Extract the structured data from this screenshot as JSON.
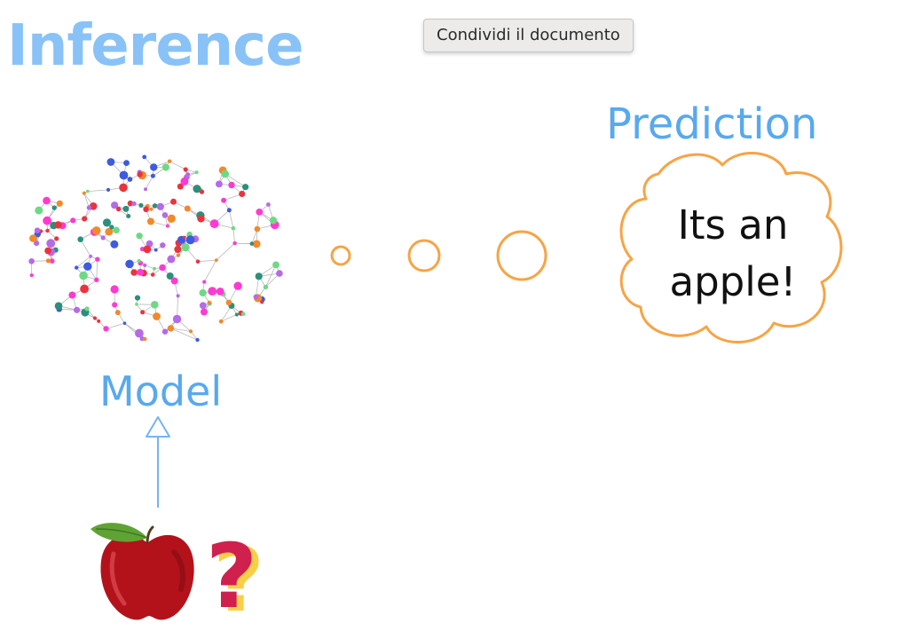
{
  "diagram": {
    "title": "Inference",
    "prediction_label": "Prediction",
    "model_label": "Model",
    "bubble_text": "Its an apple!",
    "question_mark": "?"
  },
  "tooltip": {
    "text": "Condividi il documento"
  },
  "colors": {
    "title": "#89c2f7",
    "labels": "#58a9ee",
    "bubble_outline": "#f6a446",
    "arrow": "#76b4ef",
    "apple": "#b3121b",
    "leaf": "#5fa335",
    "question_mark": "#d0204e",
    "question_shadow": "#f7d048",
    "network_nodes": [
      "#ff3ad2",
      "#e8343f",
      "#3c5be0",
      "#2b8f7c",
      "#6ed984",
      "#f08a2a",
      "#b66ae6"
    ]
  },
  "icons": {
    "brain": "brain-network-icon",
    "apple": "apple-icon"
  }
}
